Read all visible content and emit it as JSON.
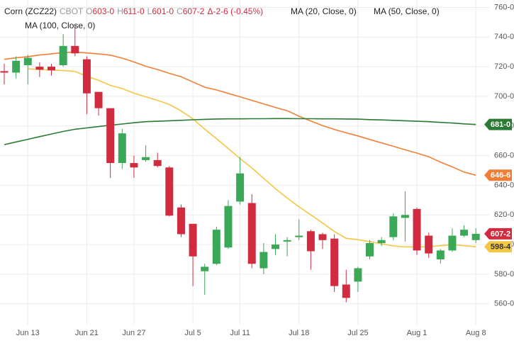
{
  "chart_data": {
    "type": "candlestick",
    "header": {
      "symbol": "Corn (ZCZ22)",
      "exchange": "CBOT",
      "ohlc": [
        {
          "key": "O",
          "value": "603-0"
        },
        {
          "key": "H",
          "value": "611-0"
        },
        {
          "key": "L",
          "value": "601-0"
        },
        {
          "key": "C",
          "value": "607-2"
        }
      ],
      "change": "Δ-2-6 (-0.45%)"
    },
    "categories": [
      null,
      null,
      "Jun 13",
      null,
      null,
      null,
      null,
      "Jun 21",
      null,
      null,
      null,
      "Jun 27",
      null,
      null,
      null,
      null,
      "Jul 5",
      null,
      null,
      null,
      "Jul 11",
      null,
      null,
      null,
      null,
      "Jul 18",
      null,
      null,
      null,
      null,
      "Jul 25",
      null,
      null,
      null,
      null,
      "Aug 1",
      null,
      null,
      null,
      null,
      "Aug 8"
    ],
    "candles": {
      "open": [
        717,
        716,
        721,
        720,
        720,
        721,
        734,
        725,
        703,
        692,
        655,
        655,
        657,
        657,
        652,
        625,
        614,
        582,
        587,
        598,
        629,
        628,
        584,
        597,
        602,
        605,
        609,
        607,
        604,
        573,
        575,
        592,
        601,
        605,
        618,
        624,
        606,
        590,
        596,
        606,
        603
      ],
      "high": [
        722,
        727,
        728,
        723,
        722,
        742,
        748,
        727,
        703,
        692,
        678,
        660,
        667,
        662,
        653,
        627,
        614,
        587,
        612,
        630,
        659,
        634,
        601,
        607,
        605,
        617,
        610,
        608,
        607,
        583,
        585,
        603,
        605,
        621,
        636,
        625,
        608,
        597,
        611,
        613,
        611
      ],
      "low": [
        708,
        712,
        708,
        713,
        714,
        720,
        727,
        688,
        687,
        645,
        651,
        645,
        656,
        652,
        619,
        605,
        572,
        566,
        586,
        597,
        627,
        584,
        580,
        593,
        592,
        603,
        583,
        597,
        568,
        561,
        568,
        590,
        599,
        603,
        602,
        593,
        591,
        587,
        595,
        605,
        601
      ],
      "close": [
        716,
        724,
        726,
        718,
        717.5,
        734,
        729,
        702,
        692,
        655,
        675,
        652,
        659,
        653,
        619.5,
        607,
        592,
        585,
        610,
        626,
        648,
        587,
        595,
        600,
        603,
        606,
        595.5,
        603,
        572,
        564,
        584,
        601,
        603,
        619,
        620,
        596,
        594,
        596,
        606,
        610,
        607.25
      ],
      "last_label": "607-2"
    },
    "series": [
      {
        "name": "MA (20, Close, 0)",
        "color": "#f2c744",
        "last_label": "598-4",
        "values": [
          null,
          null,
          718.5,
          718.1,
          717.8,
          717.4,
          716.8,
          713.5,
          710.8,
          707.4,
          705.3,
          702.1,
          699.7,
          697.3,
          694.5,
          690.2,
          684.8,
          677.9,
          671.5,
          664.8,
          658,
          651.7,
          644.7,
          637.7,
          631.4,
          625.4,
          620,
          614.5,
          608.8,
          604.2,
          603.3,
          602,
          600.5,
          599.1,
          598.4,
          598.4,
          598.5,
          599.2,
          599.9,
          599.2,
          598.5
        ]
      },
      {
        "name": "MA (50, Close, 0)",
        "color": "#f07f35",
        "last_label": "646-6",
        "values": [
          725,
          726,
          726.8,
          727.9,
          728.6,
          729.5,
          729.9,
          729.3,
          728.6,
          727.8,
          725.8,
          723.2,
          720.3,
          718.1,
          715.5,
          713.2,
          709.7,
          706.2,
          704.3,
          702,
          699.7,
          697.3,
          694.9,
          692.5,
          690.3,
          686.6,
          683.4,
          680.2,
          677.7,
          675.4,
          673.3,
          670.9,
          668.6,
          666.3,
          663.9,
          661.7,
          659.3,
          655.6,
          652.4,
          648.9,
          646.75
        ]
      },
      {
        "name": "MA (100, Close, 0)",
        "color": "#2a7a33",
        "last_label": "681-0",
        "values": [
          667.4,
          669.2,
          671,
          672.8,
          674.6,
          676.3,
          677.8,
          678.7,
          679.6,
          680.5,
          681.3,
          682.2,
          682.9,
          683.2,
          683.5,
          683.8,
          684.2,
          684.5,
          684.7,
          684.8,
          684.8,
          684.9,
          684.9,
          685,
          685,
          684.9,
          684.9,
          684.8,
          684.8,
          684.7,
          684.6,
          684.3,
          684.1,
          683.8,
          683.5,
          683.2,
          682.9,
          682.4,
          682,
          681.4,
          681
        ]
      }
    ],
    "up_color": "#3aa856",
    "down_color": "#d12b3f",
    "ylim": [
      546,
      765
    ],
    "yticks": [
      {
        "value": 560,
        "label": "560-0"
      },
      {
        "value": 580,
        "label": "580-0"
      },
      {
        "value": 600,
        "label": "600-0"
      },
      {
        "value": 620,
        "label": "620-0"
      },
      {
        "value": 640,
        "label": "640-0"
      },
      {
        "value": 660,
        "label": "660-0"
      },
      {
        "value": 680,
        "label": "680-0"
      },
      {
        "value": 700,
        "label": "700-0"
      },
      {
        "value": 720,
        "label": "720-0"
      },
      {
        "value": 740,
        "label": "740-0"
      },
      {
        "value": 760,
        "label": "760-0"
      }
    ],
    "grid": true
  }
}
